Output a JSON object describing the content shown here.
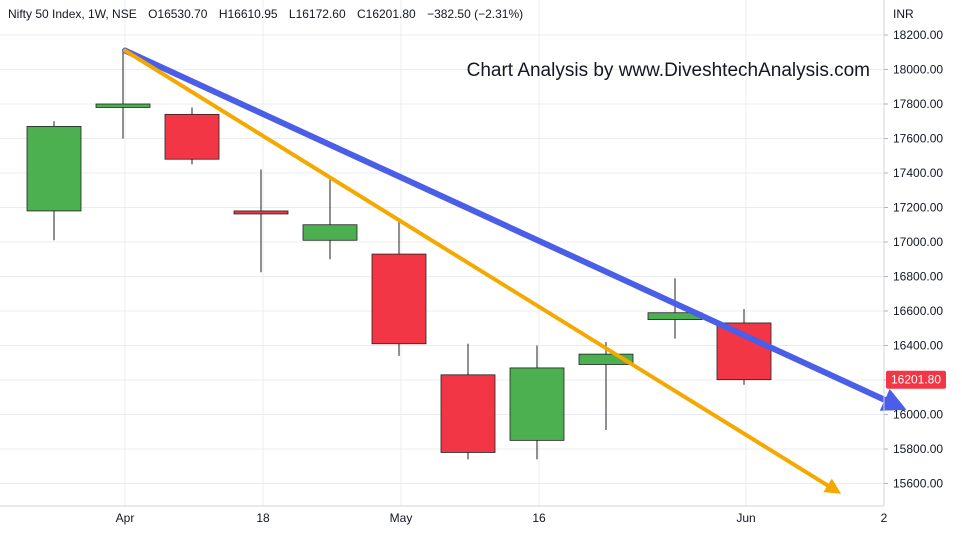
{
  "header": {
    "symbol": "Nifty 50 Index, 1W, NSE",
    "open_label": "O",
    "open": "16530.70",
    "high_label": "H",
    "high": "16610.95",
    "low_label": "L",
    "low": "16172.60",
    "close_label": "C",
    "close": "16201.80",
    "change": "−382.50 (−2.31%)"
  },
  "watermark": "Chart Analysis by www.DiveshtechAnalysis.com",
  "currency": "INR",
  "price_tag": "16201.80",
  "colors": {
    "up": "#4caf50",
    "down": "#f23645",
    "wick": "#222222",
    "grid": "#e9ecf1",
    "blue_line": "#4a5ee8",
    "orange_line": "#f5a800",
    "price_tag_bg": "#f23645",
    "text": "#131722",
    "axis_text": "#131722"
  },
  "chart_data": {
    "type": "candlestick",
    "timeframe": "1W",
    "ylim": [
      15500,
      18300
    ],
    "y_ticks": [
      "15600.00",
      "15800.00",
      "16000.00",
      "16200.00",
      "16400.00",
      "16600.00",
      "16800.00",
      "17000.00",
      "17200.00",
      "17400.00",
      "17600.00",
      "17800.00",
      "18000.00",
      "18200.00"
    ],
    "x_labels": [
      {
        "label": "Apr",
        "index": 1.5
      },
      {
        "label": "18",
        "index": 3.5
      },
      {
        "label": "May",
        "index": 5.5
      },
      {
        "label": "16",
        "index": 7.5
      },
      {
        "label": "Jun",
        "index": 10.5
      },
      {
        "label": "2",
        "index": 12.5
      }
    ],
    "candles": [
      {
        "open": 17180,
        "high": 17700,
        "low": 17010,
        "close": 17670
      },
      {
        "open": 17780,
        "high": 18110,
        "low": 17600,
        "close": 17800
      },
      {
        "open": 17740,
        "high": 17780,
        "low": 17450,
        "close": 17480
      },
      {
        "open": 17180,
        "high": 17420,
        "low": 16825,
        "close": 17170
      },
      {
        "open": 17010,
        "high": 17380,
        "low": 16900,
        "close": 17100
      },
      {
        "open": 16930,
        "high": 17130,
        "low": 16340,
        "close": 16410
      },
      {
        "open": 16230,
        "high": 16410,
        "low": 15740,
        "close": 15780
      },
      {
        "open": 15850,
        "high": 16400,
        "low": 15740,
        "close": 16270
      },
      {
        "open": 16290,
        "high": 16420,
        "low": 15910,
        "close": 16350
      },
      {
        "open": 16550,
        "high": 16790,
        "low": 16440,
        "close": 16590
      },
      {
        "open": 16530.7,
        "high": 16610.95,
        "low": 16172.6,
        "close": 16201.8
      }
    ],
    "trendlines": [
      {
        "color": "blue",
        "from": {
          "index": 1.5,
          "price": 18110
        },
        "to": {
          "index": 12.7,
          "price": 16050
        }
      },
      {
        "color": "orange",
        "from": {
          "index": 1.5,
          "price": 18110
        },
        "to": {
          "index": 11.8,
          "price": 15560
        }
      }
    ]
  }
}
